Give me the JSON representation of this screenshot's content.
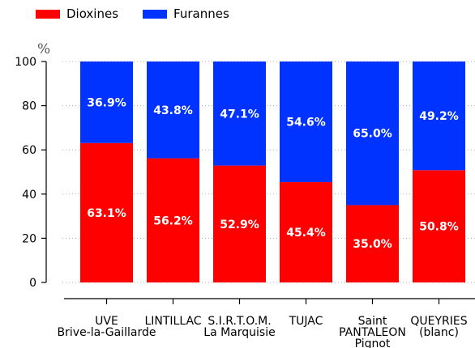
{
  "chart_data": {
    "type": "bar",
    "stacked": true,
    "categories": [
      [
        "UVE",
        "Brive-la-Gaillarde"
      ],
      [
        "LINTILLAC"
      ],
      [
        "S.I.R.T.O.M.",
        "La Marquisie"
      ],
      [
        "TUJAC"
      ],
      [
        "Saint",
        "PANTALEON",
        "Pignot"
      ],
      [
        "QUEYRIES",
        "(blanc)"
      ]
    ],
    "series": [
      {
        "name": "Dioxines",
        "color": "#ff0000",
        "values": [
          63.1,
          56.2,
          52.9,
          45.4,
          35.0,
          50.8
        ],
        "labels": [
          "63.1%",
          "56.2%",
          "52.9%",
          "45.4%",
          "35.0%",
          "50.8%"
        ]
      },
      {
        "name": "Furannes",
        "color": "#0033ff",
        "values": [
          36.9,
          43.8,
          47.1,
          54.6,
          65.0,
          49.2
        ],
        "labels": [
          "36.9%",
          "43.8%",
          "47.1%",
          "54.6%",
          "65.0%",
          "49.2%"
        ]
      }
    ],
    "ylabel": "%",
    "ylim": [
      0,
      100
    ],
    "yticks": [
      "0",
      "20",
      "40",
      "60",
      "80",
      "100"
    ],
    "grid": "horizontal-dotted",
    "legend_position": "top-left"
  }
}
